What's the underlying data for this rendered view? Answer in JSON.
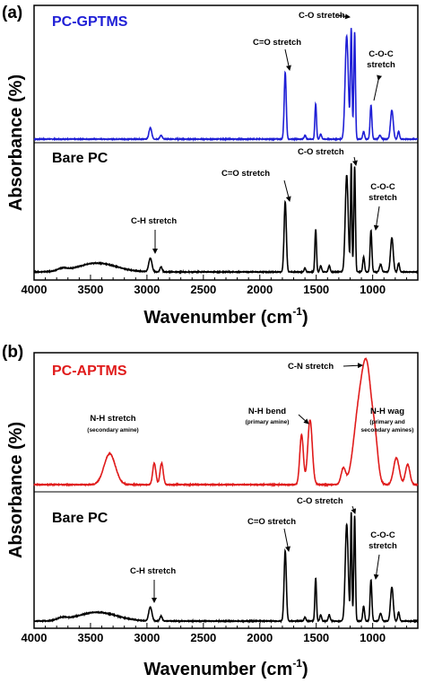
{
  "chart_data": [
    {
      "type": "line",
      "panel_label": "(a)",
      "xlabel": "Wavenumber (cm-1)",
      "xlabel_main": "Wavenumber (cm",
      "xlabel_exp": "-1",
      "xlabel_close": ")",
      "ylabel": "Absorbance (%)",
      "xlim": [
        4000,
        600
      ],
      "x_ticks": [
        4000,
        3500,
        3000,
        2500,
        2000,
        1500,
        1000
      ],
      "y_ticks_shown": false,
      "grid": false,
      "series": [
        {
          "name": "PC-GPTMS",
          "color": "#1f1fd6",
          "baseline": 0.0,
          "peaks": [
            [
              2970,
              0.09,
              12
            ],
            [
              2875,
              0.03,
              10
            ],
            [
              1775,
              0.53,
              9
            ],
            [
              1600,
              0.03,
              8
            ],
            [
              1505,
              0.28,
              7
            ],
            [
              1460,
              0.04,
              8
            ],
            [
              1230,
              0.82,
              14
            ],
            [
              1190,
              0.87,
              7
            ],
            [
              1160,
              0.85,
              7
            ],
            [
              1080,
              0.06,
              8
            ],
            [
              1015,
              0.27,
              8
            ],
            [
              935,
              0.03,
              10
            ],
            [
              830,
              0.23,
              12
            ],
            [
              770,
              0.06,
              8
            ]
          ]
        },
        {
          "name": "Bare PC",
          "color": "#000000",
          "baseline": 0.0,
          "peaks": [
            [
              3750,
              0.02,
              40
            ],
            [
              3440,
              0.07,
              170
            ],
            [
              2970,
              0.11,
              14
            ],
            [
              2875,
              0.04,
              10
            ],
            [
              1775,
              0.56,
              10
            ],
            [
              1600,
              0.03,
              8
            ],
            [
              1505,
              0.34,
              7
            ],
            [
              1460,
              0.05,
              8
            ],
            [
              1385,
              0.05,
              8
            ],
            [
              1230,
              0.77,
              13
            ],
            [
              1190,
              0.86,
              6
            ],
            [
              1160,
              0.84,
              7
            ],
            [
              1080,
              0.12,
              8
            ],
            [
              1015,
              0.33,
              8
            ],
            [
              930,
              0.06,
              10
            ],
            [
              830,
              0.27,
              12
            ],
            [
              770,
              0.07,
              8
            ]
          ]
        }
      ],
      "annotations": [
        {
          "text": "C-O stretch",
          "series": "PC-GPTMS"
        },
        {
          "text": "C=O stretch",
          "series": "PC-GPTMS"
        },
        {
          "text": "C-O-C",
          "text2": "stretch",
          "series": "PC-GPTMS"
        },
        {
          "text": "C-O stretch",
          "series": "Bare PC"
        },
        {
          "text": "C=O stretch",
          "series": "Bare PC"
        },
        {
          "text": "C-H stretch",
          "series": "Bare PC"
        },
        {
          "text": "C-O-C",
          "text2": "stretch",
          "series": "Bare PC"
        }
      ]
    },
    {
      "type": "line",
      "panel_label": "(b)",
      "xlabel": "Wavenumber (cm-1)",
      "xlabel_main": "Wavenumber (cm",
      "xlabel_exp": "-1",
      "xlabel_close": ")",
      "ylabel": "Absorbance (%)",
      "xlim": [
        4000,
        600
      ],
      "x_ticks": [
        4000,
        3500,
        3000,
        2500,
        2000,
        1500,
        1000
      ],
      "y_ticks_shown": false,
      "grid": false,
      "series": [
        {
          "name": "PC-APTMS",
          "color": "#e01b1b",
          "baseline": 0.0,
          "peaks": [
            [
              3330,
              0.23,
              50
            ],
            [
              2935,
              0.16,
              14
            ],
            [
              2870,
              0.16,
              14
            ],
            [
              1630,
              0.37,
              16
            ],
            [
              1555,
              0.48,
              20
            ],
            [
              1260,
              0.12,
              20
            ],
            [
              1130,
              0.45,
              45
            ],
            [
              1050,
              0.82,
              45
            ],
            [
              975,
              0.2,
              25
            ],
            [
              790,
              0.2,
              25
            ],
            [
              690,
              0.15,
              20
            ]
          ]
        },
        {
          "name": "Bare PC",
          "color": "#000000",
          "baseline": 0.0,
          "peaks": [
            [
              3750,
              0.02,
              40
            ],
            [
              3440,
              0.07,
              170
            ],
            [
              2970,
              0.11,
              14
            ],
            [
              2875,
              0.04,
              10
            ],
            [
              1775,
              0.56,
              10
            ],
            [
              1600,
              0.03,
              8
            ],
            [
              1505,
              0.34,
              7
            ],
            [
              1460,
              0.05,
              8
            ],
            [
              1385,
              0.05,
              8
            ],
            [
              1230,
              0.77,
              13
            ],
            [
              1190,
              0.86,
              6
            ],
            [
              1160,
              0.84,
              7
            ],
            [
              1080,
              0.12,
              8
            ],
            [
              1015,
              0.33,
              8
            ],
            [
              930,
              0.06,
              10
            ],
            [
              830,
              0.27,
              12
            ],
            [
              770,
              0.07,
              8
            ]
          ]
        }
      ],
      "annotations": [
        {
          "text": "C-N stretch",
          "series": "PC-APTMS"
        },
        {
          "text": "N-H stretch",
          "sub": "(secondary amine)",
          "series": "PC-APTMS"
        },
        {
          "text": "N-H bend",
          "sub": "(primary amine)",
          "series": "PC-APTMS"
        },
        {
          "text": "N-H wag",
          "sub": "(primary and",
          "sub2": "secondary amines)",
          "series": "PC-APTMS"
        },
        {
          "text": "C-O stretch",
          "series": "Bare PC"
        },
        {
          "text": "C=O stretch",
          "series": "Bare PC"
        },
        {
          "text": "C-H stretch",
          "series": "Bare PC"
        },
        {
          "text": "C-O-C",
          "text2": "stretch",
          "series": "Bare PC"
        }
      ]
    }
  ]
}
